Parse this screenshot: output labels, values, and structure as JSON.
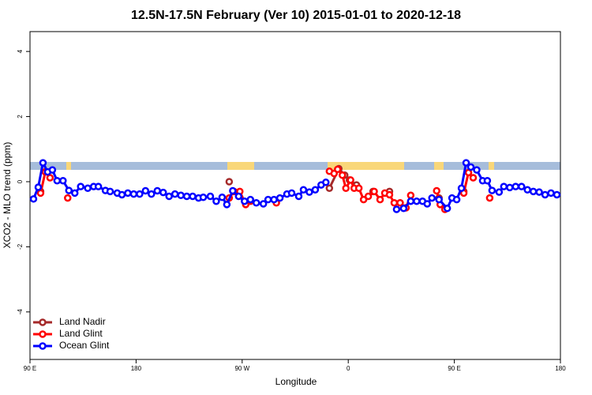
{
  "chart_data": {
    "type": "line",
    "title": "12.5N-17.5N February (Ver 10)   2015-01-01 to 2020-12-18",
    "xlabel": "Longitude",
    "ylabel": "XCO2 - MLO trend (ppm)",
    "xlim": [
      90,
      540
    ],
    "ylim": [
      -5.46,
      4.61
    ],
    "xticks": [
      {
        "value": 90,
        "label": "90 E"
      },
      180,
      {
        "value": 270,
        "label": "90 W"
      },
      {
        "value": 360,
        "label": "0"
      },
      {
        "value": 450,
        "label": "90 E"
      },
      {
        "value": 540,
        "label": "180"
      }
    ],
    "yticks": [
      -4,
      -2,
      0,
      2,
      4
    ],
    "legend": "lower left",
    "series": [
      {
        "name": "Land Nadir",
        "color": "#a52a2a",
        "x": [
          99,
          null,
          259,
          null,
          344,
          352,
          357,
          361,
          367,
          null,
          381,
          null,
          395,
          null,
          437,
          null,
          458
        ],
        "values": [
          -0.3,
          null,
          0.0,
          null,
          -0.2,
          0.4,
          0.2,
          0.05,
          -0.1,
          null,
          -0.3,
          null,
          -0.3,
          null,
          -0.5,
          null,
          -0.3
        ]
      },
      {
        "name": "Land Glint",
        "color": "#ff0000",
        "x": [
          99,
          103,
          107,
          null,
          122,
          null,
          259,
          263,
          268,
          273,
          277,
          null,
          299,
          null,
          344,
          348,
          351,
          355,
          358,
          362,
          365,
          369,
          373,
          377,
          382,
          387,
          391,
          395,
          399,
          404,
          409,
          413,
          null,
          435,
          438,
          442,
          null,
          458,
          462,
          466,
          null,
          480
        ],
        "values": [
          -0.35,
          0.3,
          0.12,
          null,
          -0.5,
          null,
          -0.5,
          -0.3,
          -0.3,
          -0.7,
          -0.6,
          null,
          -0.65,
          null,
          0.32,
          0.25,
          0.38,
          0.2,
          -0.2,
          0.05,
          -0.2,
          -0.2,
          -0.55,
          -0.45,
          -0.3,
          -0.55,
          -0.35,
          -0.4,
          -0.65,
          -0.65,
          -0.8,
          -0.42,
          null,
          -0.28,
          -0.7,
          -0.85,
          null,
          -0.35,
          0.28,
          0.12,
          null,
          -0.5
        ]
      },
      {
        "name": "Ocean Glint",
        "color": "#0000ff",
        "x": [
          93,
          97,
          101,
          105,
          109,
          113,
          118,
          123,
          128,
          133,
          139,
          144,
          148,
          154,
          158,
          164,
          168,
          173,
          178,
          183,
          188,
          193,
          198,
          203,
          208,
          213,
          218,
          223,
          228,
          233,
          237,
          243,
          248,
          253,
          257,
          262,
          267,
          272,
          277,
          282,
          288,
          292,
          297,
          302,
          308,
          312,
          318,
          322,
          327,
          332,
          337,
          341,
          null,
          401,
          407,
          413,
          418,
          423,
          427,
          431,
          437,
          444,
          448,
          452,
          456,
          460,
          464,
          469,
          474,
          478,
          482,
          488,
          492,
          497,
          502,
          507,
          512,
          517,
          522,
          527,
          532,
          537
        ],
        "values": [
          -0.53,
          -0.17,
          0.58,
          0.3,
          0.36,
          0.03,
          0.03,
          -0.27,
          -0.35,
          -0.15,
          -0.2,
          -0.15,
          -0.15,
          -0.27,
          -0.3,
          -0.35,
          -0.4,
          -0.35,
          -0.38,
          -0.38,
          -0.28,
          -0.38,
          -0.28,
          -0.33,
          -0.45,
          -0.38,
          -0.42,
          -0.45,
          -0.45,
          -0.5,
          -0.48,
          -0.45,
          -0.6,
          -0.48,
          -0.7,
          -0.28,
          -0.45,
          -0.6,
          -0.55,
          -0.65,
          -0.68,
          -0.55,
          -0.55,
          -0.5,
          -0.38,
          -0.35,
          -0.45,
          -0.25,
          -0.32,
          -0.25,
          -0.1,
          -0.02,
          null,
          -0.85,
          -0.82,
          -0.6,
          -0.6,
          -0.6,
          -0.68,
          -0.5,
          -0.55,
          -0.82,
          -0.5,
          -0.55,
          -0.2,
          0.58,
          0.45,
          0.36,
          0.03,
          0.03,
          -0.27,
          -0.32,
          -0.15,
          -0.18,
          -0.15,
          -0.15,
          -0.25,
          -0.3,
          -0.32,
          -0.4,
          -0.35,
          -0.4
        ]
      }
    ]
  }
}
